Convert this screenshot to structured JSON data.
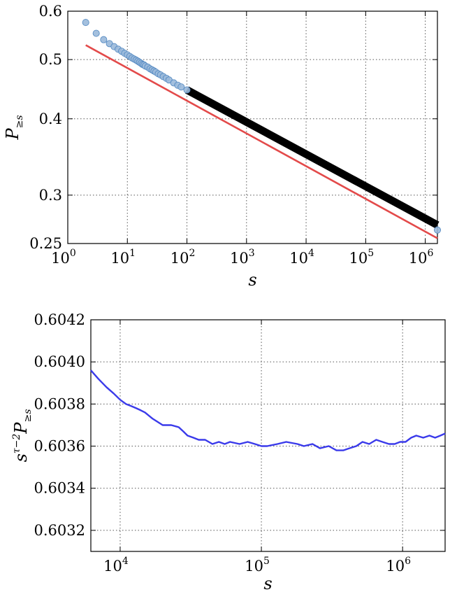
{
  "chart_data": [
    {
      "type": "scatter",
      "title": "",
      "xlabel": "s",
      "ylabel": {
        "main": "P",
        "sub": "≥s"
      },
      "xscale": "log",
      "yscale": "log",
      "xlim": [
        1,
        1600000
      ],
      "ylim": [
        0.25,
        0.6
      ],
      "grid": true,
      "x_ticks": [
        {
          "value": 1,
          "base": "10",
          "exp": "0"
        },
        {
          "value": 10,
          "base": "10",
          "exp": "1"
        },
        {
          "value": 100,
          "base": "10",
          "exp": "2"
        },
        {
          "value": 1000,
          "base": "10",
          "exp": "3"
        },
        {
          "value": 10000,
          "base": "10",
          "exp": "4"
        },
        {
          "value": 100000,
          "base": "10",
          "exp": "5"
        },
        {
          "value": 1000000,
          "base": "10",
          "exp": "6"
        }
      ],
      "y_ticks": [
        {
          "value": 0.25,
          "label": "0.25"
        },
        {
          "value": 0.3,
          "label": "0.3"
        },
        {
          "value": 0.4,
          "label": "0.4"
        },
        {
          "value": 0.5,
          "label": "0.5"
        },
        {
          "value": 0.6,
          "label": "0.6"
        }
      ],
      "series": [
        {
          "kind": "points",
          "color": "#4f86c0",
          "fill": "#9ab9da",
          "x": [
            2,
            3,
            4,
            5,
            6,
            7,
            8,
            9,
            10,
            11,
            12,
            13,
            14,
            15,
            16,
            17,
            18,
            19,
            20,
            22,
            24,
            26,
            28,
            30,
            33,
            36,
            40,
            45,
            50,
            60,
            70,
            80,
            100,
            1600000
          ],
          "y": [
            0.575,
            0.552,
            0.539,
            0.531,
            0.525,
            0.52,
            0.516,
            0.512,
            0.509,
            0.506,
            0.503,
            0.501,
            0.499,
            0.497,
            0.495,
            0.493,
            0.491,
            0.49,
            0.488,
            0.486,
            0.483,
            0.481,
            0.479,
            0.477,
            0.474,
            0.472,
            0.469,
            0.466,
            0.463,
            0.458,
            0.454,
            0.451,
            0.446,
            0.263
          ]
        },
        {
          "kind": "band",
          "color": "#000000",
          "x": [
            100,
            1600000
          ],
          "y": [
            0.446,
            0.268
          ]
        },
        {
          "kind": "line",
          "color": "#e34a4a",
          "x": [
            2,
            1600000
          ],
          "y": [
            0.528,
            0.255
          ]
        }
      ]
    },
    {
      "type": "line",
      "title": "",
      "xlabel": "s",
      "ylabel": {
        "main": "s",
        "sup": "τ−2",
        "main2": "P",
        "sub": "≥s"
      },
      "xscale": "log",
      "yscale": "linear",
      "xlim": [
        6200,
        2000000
      ],
      "ylim": [
        0.6031,
        0.6042
      ],
      "grid": true,
      "x_ticks": [
        {
          "value": 10000,
          "base": "10",
          "exp": "4"
        },
        {
          "value": 100000,
          "base": "10",
          "exp": "5"
        },
        {
          "value": 1000000,
          "base": "10",
          "exp": "6"
        }
      ],
      "y_ticks": [
        {
          "value": 0.6032,
          "label": "0.6032"
        },
        {
          "value": 0.6034,
          "label": "0.6034"
        },
        {
          "value": 0.6036,
          "label": "0.6036"
        },
        {
          "value": 0.6038,
          "label": "0.6038"
        },
        {
          "value": 0.604,
          "label": "0.6040"
        },
        {
          "value": 0.6042,
          "label": "0.6042"
        }
      ],
      "series": [
        {
          "kind": "line",
          "color": "#3a3aea",
          "x": [
            6200,
            7000,
            8000,
            9000,
            10000,
            11000,
            12000,
            13000,
            14000,
            15000,
            17000,
            20000,
            23000,
            26000,
            28000,
            30000,
            33000,
            36000,
            40000,
            45000,
            50000,
            55000,
            60000,
            70000,
            80000,
            90000,
            100000,
            110000,
            130000,
            150000,
            180000,
            200000,
            230000,
            260000,
            300000,
            340000,
            380000,
            420000,
            470000,
            520000,
            580000,
            650000,
            720000,
            800000,
            880000,
            960000,
            1050000,
            1150000,
            1250000,
            1400000,
            1550000,
            1700000,
            1850000,
            2000000
          ],
          "y": [
            0.60396,
            0.60392,
            0.60388,
            0.60385,
            0.60382,
            0.6038,
            0.60379,
            0.60378,
            0.60377,
            0.60376,
            0.60373,
            0.6037,
            0.6037,
            0.60369,
            0.60367,
            0.60365,
            0.60364,
            0.60363,
            0.60363,
            0.60361,
            0.60362,
            0.60361,
            0.60362,
            0.60361,
            0.60362,
            0.60361,
            0.6036,
            0.6036,
            0.60361,
            0.60362,
            0.60361,
            0.6036,
            0.60361,
            0.60359,
            0.6036,
            0.60358,
            0.60358,
            0.60359,
            0.6036,
            0.60362,
            0.60361,
            0.60363,
            0.60362,
            0.60361,
            0.60361,
            0.60362,
            0.60362,
            0.60364,
            0.60365,
            0.60364,
            0.60365,
            0.60364,
            0.60365,
            0.60366
          ]
        }
      ]
    }
  ]
}
